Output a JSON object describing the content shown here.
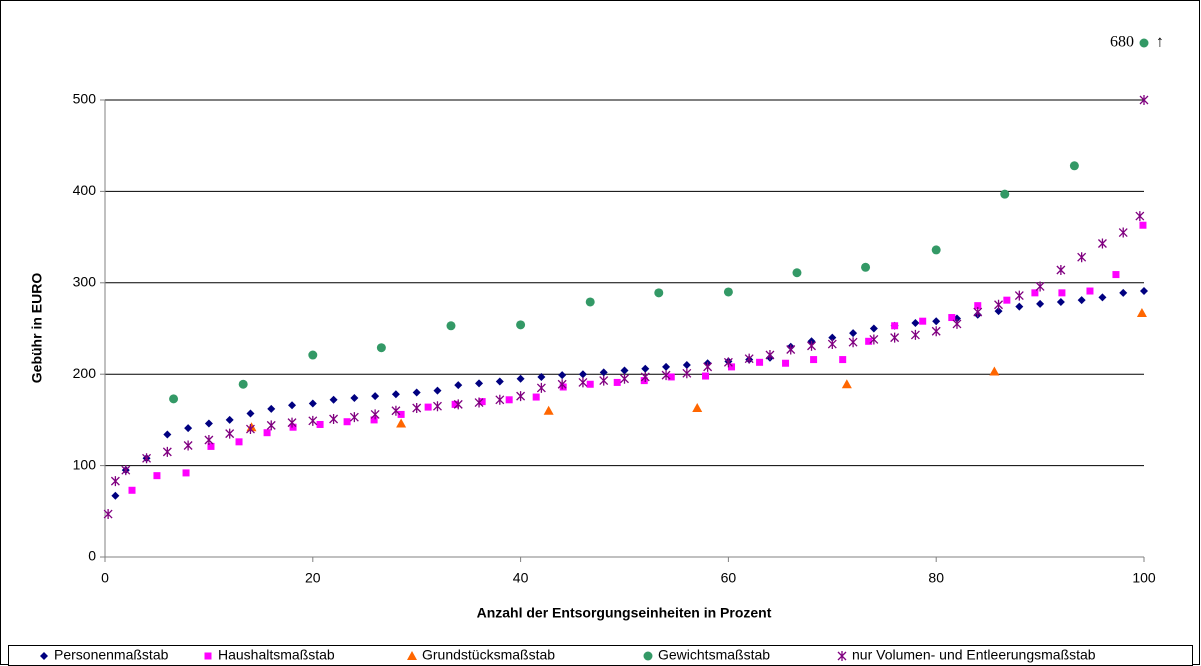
{
  "chart_data": {
    "type": "scatter",
    "xlabel": "Anzahl der Entsorgungseinheiten in Prozent",
    "ylabel": "Gebühr in EURO",
    "xlim": [
      0,
      100
    ],
    "xticks": [
      0,
      20,
      40,
      60,
      80,
      100
    ],
    "ylim": [
      0,
      500
    ],
    "yticks": [
      0,
      100,
      200,
      300,
      400,
      500
    ],
    "grid": true,
    "legend": "bottom",
    "annotation": {
      "text": "680",
      "arrow": "↑",
      "series": 3
    },
    "series": [
      {
        "name": "Personenmaßstab",
        "color": "#000080",
        "marker": "diamond",
        "x": [
          1,
          2,
          4,
          6,
          8,
          10,
          12,
          14,
          16,
          18,
          20,
          22,
          24,
          26,
          28,
          30,
          32,
          34,
          36,
          38,
          40,
          42,
          44,
          46,
          48,
          50,
          52,
          54,
          56,
          58,
          60,
          62,
          64,
          66,
          68,
          70,
          72,
          74,
          76,
          78,
          80,
          82,
          84,
          86,
          88,
          90,
          92,
          94,
          96,
          98,
          100
        ],
        "values": [
          67,
          95,
          108,
          134,
          141,
          146,
          150,
          157,
          162,
          166,
          168,
          172,
          174,
          176,
          178,
          180,
          182,
          188,
          190,
          192,
          195,
          197,
          199,
          200,
          202,
          204,
          206,
          208,
          210,
          212,
          214,
          216,
          218,
          230,
          236,
          240,
          245,
          250,
          253,
          256,
          258,
          261,
          265,
          269,
          274,
          277,
          279,
          281,
          284,
          289,
          291
        ]
      },
      {
        "name": "Haushaltsmaßstab",
        "color": "#ff00ff",
        "marker": "square",
        "x": [
          2.6,
          5,
          7.8,
          10.2,
          12.9,
          15.6,
          18.1,
          20.7,
          23.3,
          25.9,
          28.5,
          31.1,
          33.7,
          36.3,
          38.9,
          41.5,
          44.1,
          46.7,
          49.3,
          51.9,
          54.5,
          57.8,
          60.3,
          63,
          65.5,
          68.2,
          71,
          73.5,
          76,
          78.7,
          81.5,
          84,
          86.8,
          89.5,
          92.1,
          94.8,
          97.3,
          99.9
        ],
        "values": [
          73,
          89,
          92,
          121,
          126,
          136,
          142,
          145,
          148,
          150,
          156,
          164,
          167,
          170,
          172,
          175,
          186,
          189,
          191,
          193,
          197,
          198,
          208,
          213,
          212,
          216,
          216,
          236,
          253,
          258,
          262,
          275,
          281,
          289,
          289,
          291,
          309,
          363
        ]
      },
      {
        "name": "Grundstücksmaßstab",
        "color": "#ff6600",
        "marker": "triangle",
        "x": [
          14.1,
          28.5,
          42.7,
          57,
          71.4,
          85.6,
          99.8
        ],
        "values": [
          142,
          146,
          160,
          163,
          189,
          203,
          267
        ]
      },
      {
        "name": "Gewichtsmaßstab",
        "color": "#339966",
        "marker": "circle",
        "x": [
          6.6,
          13.3,
          20,
          26.6,
          33.3,
          40,
          46.7,
          53.3,
          60,
          66.6,
          73.2,
          80,
          86.6,
          93.3
        ],
        "values": [
          173,
          189,
          221,
          229,
          253,
          254,
          279,
          289,
          290,
          311,
          317,
          336,
          397,
          428
        ]
      },
      {
        "name": "nur Volumen- und Entleerungsmaßstab",
        "color": "#800080",
        "marker": "x",
        "x": [
          0.3,
          1,
          2,
          4,
          6,
          8,
          10,
          12,
          14,
          16,
          18,
          20,
          22,
          24,
          26,
          28,
          30,
          32,
          34,
          36,
          38,
          40,
          42,
          44,
          46,
          48,
          50,
          52,
          54,
          56,
          58,
          60,
          62,
          64,
          66,
          68,
          70,
          72,
          74,
          76,
          78,
          80,
          82,
          84,
          86,
          88,
          90,
          92,
          94,
          96,
          98,
          99.6,
          100
        ],
        "values": [
          47,
          83,
          95,
          108,
          115,
          122,
          128,
          135,
          140,
          144,
          147,
          149,
          151,
          153,
          156,
          160,
          163,
          165,
          167,
          169,
          172,
          176,
          185,
          189,
          191,
          193,
          195,
          197,
          199,
          201,
          208,
          213,
          217,
          221,
          227,
          231,
          233,
          235,
          238,
          240,
          243,
          247,
          255,
          268,
          276,
          286,
          296,
          314,
          328,
          343,
          355,
          373,
          500
        ]
      }
    ]
  }
}
